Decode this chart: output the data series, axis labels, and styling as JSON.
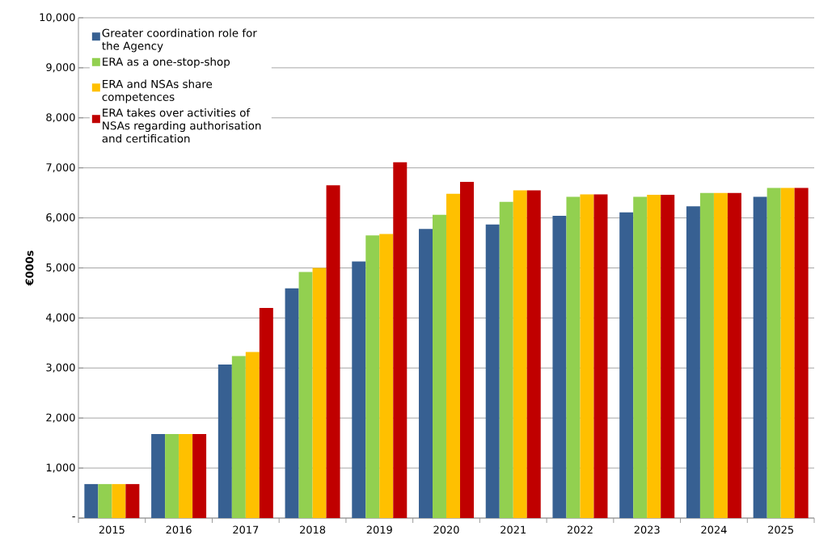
{
  "chart_data": {
    "type": "bar",
    "ylabel": "€000s",
    "categories": [
      "2015",
      "2016",
      "2017",
      "2018",
      "2019",
      "2020",
      "2021",
      "2022",
      "2023",
      "2024",
      "2025"
    ],
    "series": [
      {
        "name": "Greater coordination role for the Agency",
        "color": "#376092",
        "values": [
          680,
          1680,
          3070,
          4590,
          5130,
          5780,
          5870,
          6040,
          6110,
          6230,
          6420
        ]
      },
      {
        "name": "ERA as a one-stop-shop",
        "color": "#92d050",
        "values": [
          680,
          1680,
          3240,
          4920,
          5650,
          6060,
          6320,
          6420,
          6420,
          6500,
          6600
        ]
      },
      {
        "name": "ERA and NSAs share competences",
        "color": "#ffc000",
        "values": [
          680,
          1680,
          3320,
          5000,
          5680,
          6480,
          6550,
          6470,
          6460,
          6500,
          6600
        ]
      },
      {
        "name": "ERA takes over activities of NSAs regarding authorisation and certification",
        "color": "#c00000",
        "values": [
          680,
          1680,
          4200,
          6650,
          7110,
          6720,
          6550,
          6470,
          6460,
          6500,
          6600
        ]
      }
    ],
    "ylim": [
      0,
      10000
    ],
    "yticks": [
      {
        "value": 0,
        "label": "-"
      },
      {
        "value": 1000,
        "label": "1,000"
      },
      {
        "value": 2000,
        "label": "2,000"
      },
      {
        "value": 3000,
        "label": "3,000"
      },
      {
        "value": 4000,
        "label": "4,000"
      },
      {
        "value": 5000,
        "label": "5,000"
      },
      {
        "value": 6000,
        "label": "6,000"
      },
      {
        "value": 7000,
        "label": "7,000"
      },
      {
        "value": 8000,
        "label": "8,000"
      },
      {
        "value": 9000,
        "label": "9,000"
      },
      {
        "value": 10000,
        "label": "10,000"
      }
    ],
    "grid": "y",
    "legend": "top left"
  }
}
